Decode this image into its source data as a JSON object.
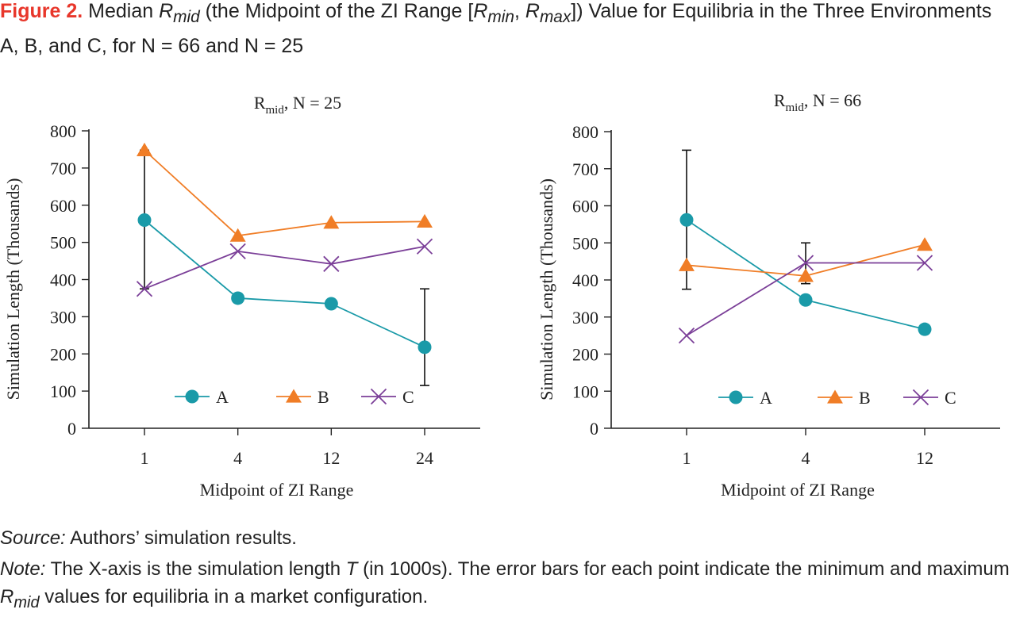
{
  "figure": {
    "label": "Figure 2.",
    "title_pre": " Median ",
    "r": "R",
    "mid": "mid",
    "min": "min",
    "max": "max",
    "title_mid": " (the Midpoint of the ZI Range [",
    "comma": ", ",
    "title_post": "]) Value for Equilibria in the Three Environments A, B, and C, for N = 66 and N = 25"
  },
  "source": {
    "label": "Source:",
    "text": " Authors’ simulation results."
  },
  "note": {
    "label": "Note:",
    "pre": " The X-axis is the simulation length ",
    "T": "T",
    "mid_text": " (in 1000s). The error bars for each point indicate the mini­mum and maximum ",
    "r": "R",
    "sub": "mid",
    "post": " values for equilibria in a market configuration."
  },
  "colors": {
    "A": "#1a9aa8",
    "B": "#f07d26",
    "C": "#7b3f98",
    "axis": "#222222"
  },
  "chart_data": [
    {
      "type": "line",
      "title_main": "R",
      "title_sub": "mid",
      "title_rest": ", N = 25",
      "xlabel": "Midpoint of ZI Range",
      "ylabel": "Simulation Length (Thousands)",
      "categories": [
        "1",
        "4",
        "12",
        "24"
      ],
      "ylim": [
        0,
        800
      ],
      "yticks": [
        0,
        100,
        200,
        300,
        400,
        500,
        600,
        700,
        800
      ],
      "legend_position": "bottom",
      "series": [
        {
          "name": "A",
          "marker": "circle",
          "values": [
            560,
            350,
            335,
            218
          ]
        },
        {
          "name": "B",
          "marker": "triangle",
          "values": [
            748,
            518,
            553,
            556
          ]
        },
        {
          "name": "C",
          "marker": "x",
          "values": [
            375,
            476,
            442,
            489
          ]
        }
      ],
      "error_bars": [
        {
          "category": "1",
          "low": 375,
          "high": 748
        },
        {
          "category": "24",
          "low": 115,
          "high": 375
        }
      ]
    },
    {
      "type": "line",
      "title_main": "R",
      "title_sub": "mid",
      "title_rest": ", N = 66",
      "xlabel": "Midpoint of ZI Range",
      "ylabel": "Simulation Length (Thousands)",
      "categories": [
        "1",
        "4",
        "12"
      ],
      "ylim": [
        0,
        800
      ],
      "yticks": [
        0,
        100,
        200,
        300,
        400,
        500,
        600,
        700,
        800
      ],
      "legend_position": "bottom",
      "series": [
        {
          "name": "A",
          "marker": "circle",
          "values": [
            562,
            346,
            267
          ]
        },
        {
          "name": "B",
          "marker": "triangle",
          "values": [
            440,
            411,
            495
          ]
        },
        {
          "name": "C",
          "marker": "x",
          "values": [
            250,
            446,
            446
          ]
        }
      ],
      "error_bars": [
        {
          "category": "1",
          "low": 375,
          "high": 750
        },
        {
          "category": "4",
          "low": 390,
          "high": 500
        }
      ]
    }
  ]
}
